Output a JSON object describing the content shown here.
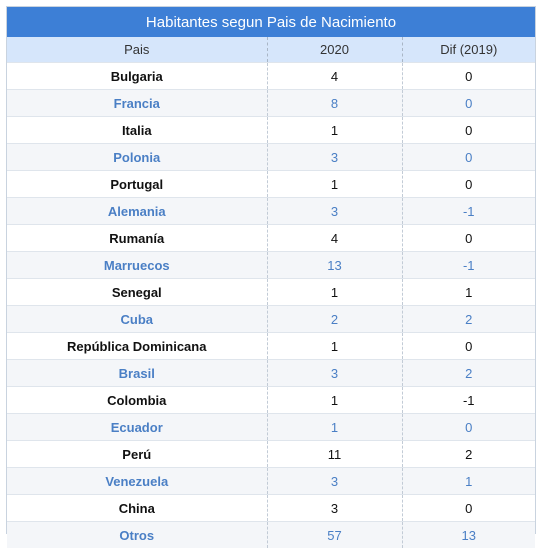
{
  "table": {
    "title": "Habitantes segun Pais de Nacimiento",
    "headers": [
      "Pais",
      "2020",
      "Dif (2019)"
    ],
    "rows": [
      {
        "country": "Bulgaria",
        "y2020": "4",
        "diff": "0"
      },
      {
        "country": "Francia",
        "y2020": "8",
        "diff": "0"
      },
      {
        "country": "Italia",
        "y2020": "1",
        "diff": "0"
      },
      {
        "country": "Polonia",
        "y2020": "3",
        "diff": "0"
      },
      {
        "country": "Portugal",
        "y2020": "1",
        "diff": "0"
      },
      {
        "country": "Alemania",
        "y2020": "3",
        "diff": "-1"
      },
      {
        "country": "Rumanía",
        "y2020": "4",
        "diff": "0"
      },
      {
        "country": "Marruecos",
        "y2020": "13",
        "diff": "-1"
      },
      {
        "country": "Senegal",
        "y2020": "1",
        "diff": "1"
      },
      {
        "country": "Cuba",
        "y2020": "2",
        "diff": "2"
      },
      {
        "country": "República Dominicana",
        "y2020": "1",
        "diff": "0"
      },
      {
        "country": "Brasil",
        "y2020": "3",
        "diff": "2"
      },
      {
        "country": "Colombia",
        "y2020": "1",
        "diff": "-1"
      },
      {
        "country": "Ecuador",
        "y2020": "1",
        "diff": "0"
      },
      {
        "country": "Perú",
        "y2020": "11",
        "diff": "2"
      },
      {
        "country": "Venezuela",
        "y2020": "3",
        "diff": "1"
      },
      {
        "country": "China",
        "y2020": "3",
        "diff": "0"
      },
      {
        "country": "Otros",
        "y2020": "57",
        "diff": "13"
      }
    ]
  },
  "colors": {
    "title_bg": "#3d7fd6",
    "header_bg": "#d6e6fb",
    "alt_row_text": "#4a7fc5",
    "row_text": "#111111"
  }
}
